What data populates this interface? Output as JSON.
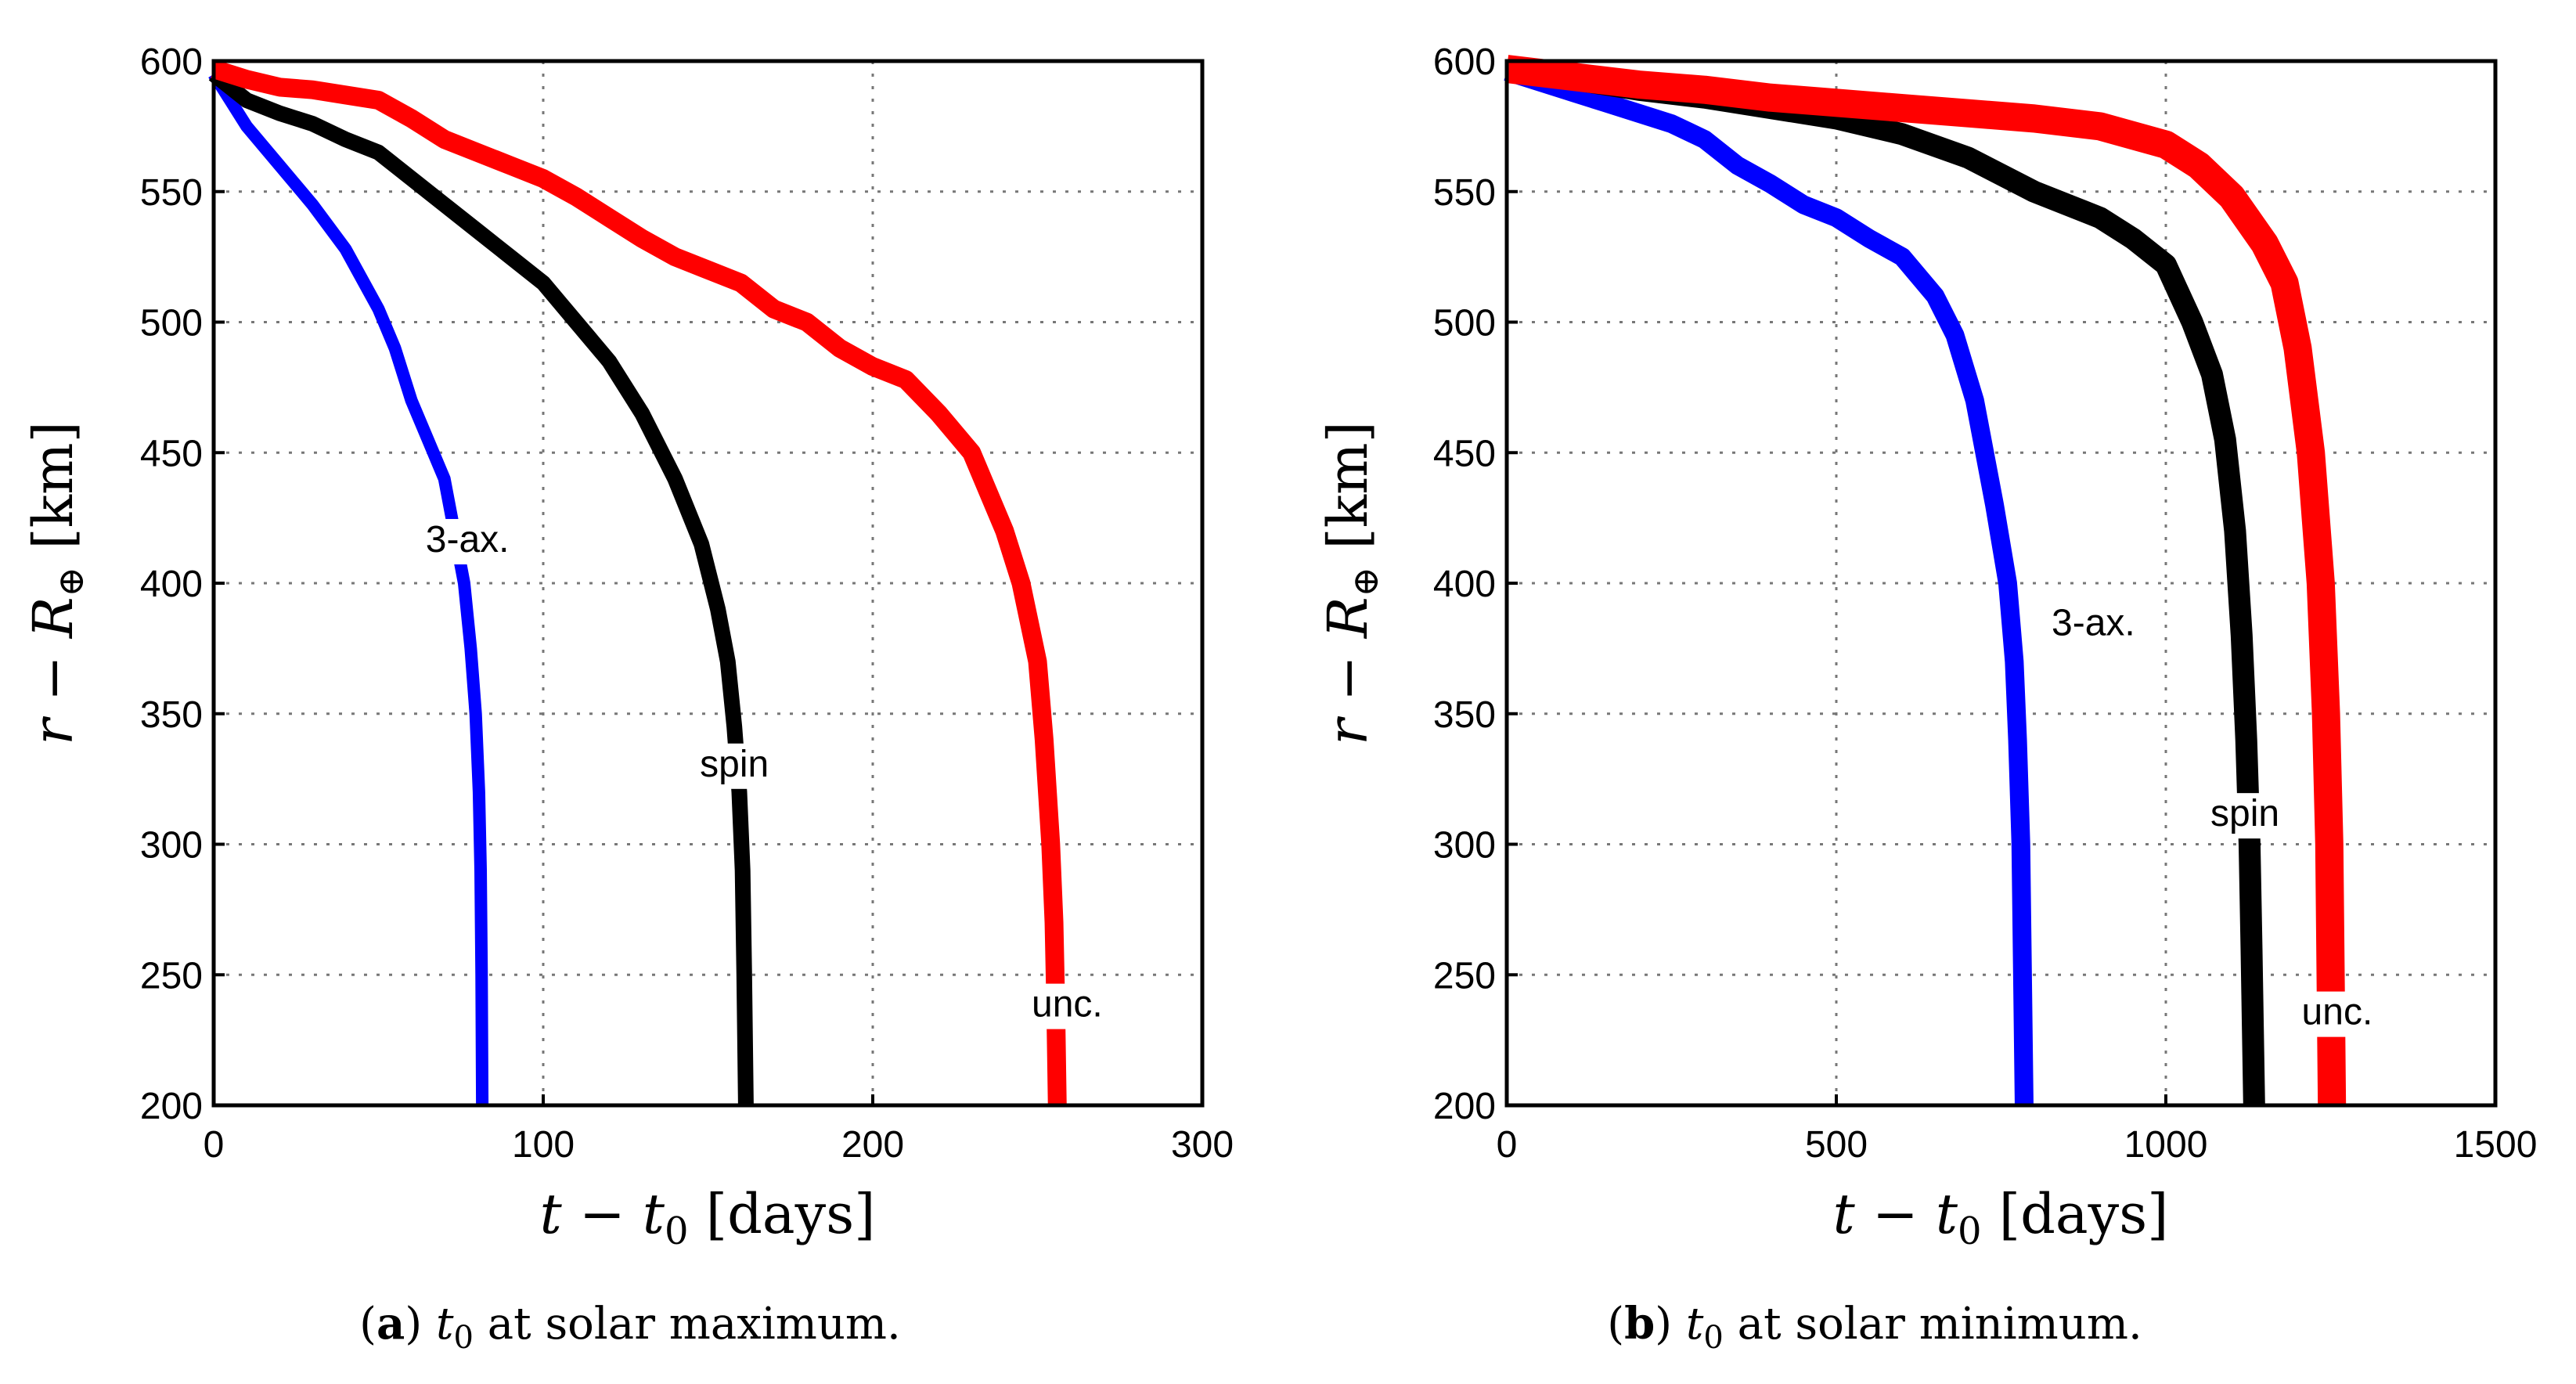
{
  "chart_data": [
    {
      "type": "line",
      "panel": "a",
      "caption": {
        "letter": "a",
        "t0": "t",
        "t0_sub": "0",
        "text": " at solar maximum."
      },
      "xlabel": {
        "var": "t",
        "minus": " − ",
        "t0": "t",
        "t0_sub": "0",
        "unit": " [days]"
      },
      "ylabel": {
        "var": "r",
        "minus": " − ",
        "R": "R",
        "R_sub": "⊕",
        "unit": " [km]"
      },
      "xlim": [
        0,
        300
      ],
      "ylim": [
        200,
        600
      ],
      "xticks": [
        0,
        100,
        200,
        300
      ],
      "yticks": [
        200,
        250,
        300,
        350,
        400,
        450,
        500,
        550,
        600
      ],
      "grid": true,
      "series": [
        {
          "name": "3-ax.",
          "label": "3-ax.",
          "color": "#0000ff",
          "band": 4,
          "x": [
            0,
            5,
            10,
            20,
            30,
            40,
            50,
            55,
            60,
            65,
            70,
            73,
            76,
            78,
            79.5,
            80.5,
            81,
            81.3,
            81.5
          ],
          "y": [
            595,
            585,
            575,
            560,
            545,
            528,
            505,
            490,
            470,
            455,
            440,
            420,
            400,
            375,
            350,
            320,
            290,
            250,
            200
          ],
          "label_at": [
            77,
            412
          ]
        },
        {
          "name": "spin",
          "label": "spin",
          "color": "#000000",
          "band": 5,
          "x": [
            0,
            10,
            20,
            30,
            40,
            50,
            60,
            70,
            80,
            90,
            100,
            110,
            120,
            130,
            140,
            148,
            153,
            156,
            158,
            159.5,
            160.5,
            161,
            161.5
          ],
          "y": [
            595,
            585,
            580,
            576,
            570,
            565,
            555,
            545,
            535,
            525,
            515,
            500,
            485,
            465,
            440,
            415,
            390,
            370,
            345,
            320,
            290,
            250,
            200
          ],
          "label_at": [
            158,
            326
          ]
        },
        {
          "name": "unc.",
          "label": "unc.",
          "color": "#ff0000",
          "band": 6,
          "x": [
            0,
            10,
            20,
            30,
            40,
            50,
            60,
            70,
            80,
            90,
            100,
            110,
            120,
            130,
            140,
            150,
            160,
            170,
            180,
            190,
            200,
            210,
            220,
            230,
            240,
            245,
            250,
            252,
            254,
            255,
            255.5,
            256
          ],
          "y": [
            597,
            593,
            590,
            589,
            587,
            585,
            578,
            570,
            565,
            560,
            555,
            548,
            540,
            532,
            525,
            520,
            515,
            505,
            500,
            490,
            483,
            478,
            465,
            450,
            420,
            400,
            370,
            340,
            300,
            270,
            240,
            200
          ],
          "label_at": [
            259,
            234
          ]
        }
      ]
    },
    {
      "type": "line",
      "panel": "b",
      "caption": {
        "letter": "b",
        "t0": "t",
        "t0_sub": "0",
        "text": " at solar minimum."
      },
      "xlabel": {
        "var": "t",
        "minus": " − ",
        "t0": "t",
        "t0_sub": "0",
        "unit": " [days]"
      },
      "ylabel": {
        "var": "r",
        "minus": " − ",
        "R": "R",
        "R_sub": "⊕",
        "unit": " [km]"
      },
      "xlim": [
        0,
        1500
      ],
      "ylim": [
        200,
        600
      ],
      "xticks": [
        0,
        500,
        1000,
        1500
      ],
      "yticks": [
        200,
        250,
        300,
        350,
        400,
        450,
        500,
        550,
        600
      ],
      "grid": true,
      "series": [
        {
          "name": "3-ax.",
          "label": "3-ax.",
          "color": "#0000ff",
          "band": 6,
          "x": [
            0,
            50,
            100,
            150,
            200,
            250,
            300,
            350,
            400,
            450,
            500,
            550,
            600,
            650,
            680,
            710,
            740,
            760,
            770,
            775,
            780,
            782,
            785
          ],
          "y": [
            596,
            592,
            588,
            584,
            580,
            576,
            570,
            560,
            553,
            545,
            540,
            532,
            525,
            510,
            495,
            470,
            430,
            400,
            370,
            340,
            300,
            260,
            200
          ],
          "label_at": [
            890,
            380
          ]
        },
        {
          "name": "spin",
          "label": "spin",
          "color": "#000000",
          "band": 7,
          "x": [
            0,
            100,
            200,
            300,
            400,
            500,
            600,
            700,
            800,
            900,
            950,
            1000,
            1040,
            1070,
            1090,
            1105,
            1115,
            1122,
            1127,
            1130,
            1132,
            1134
          ],
          "y": [
            597,
            593,
            589,
            586,
            582,
            578,
            572,
            563,
            550,
            540,
            532,
            522,
            500,
            480,
            455,
            420,
            380,
            340,
            300,
            260,
            230,
            200
          ],
          "label_at": [
            1120,
            307
          ]
        },
        {
          "name": "unc.",
          "label": "unc.",
          "color": "#ff0000",
          "band": 9,
          "x": [
            0,
            100,
            200,
            300,
            400,
            500,
            600,
            700,
            800,
            900,
            1000,
            1050,
            1100,
            1150,
            1180,
            1200,
            1220,
            1235,
            1243,
            1248,
            1250,
            1252
          ],
          "y": [
            597,
            594,
            591,
            589,
            586,
            584,
            582,
            580,
            578,
            575,
            568,
            560,
            548,
            530,
            515,
            490,
            450,
            400,
            350,
            300,
            250,
            200
          ],
          "label_at": [
            1260,
            231
          ]
        }
      ]
    }
  ]
}
